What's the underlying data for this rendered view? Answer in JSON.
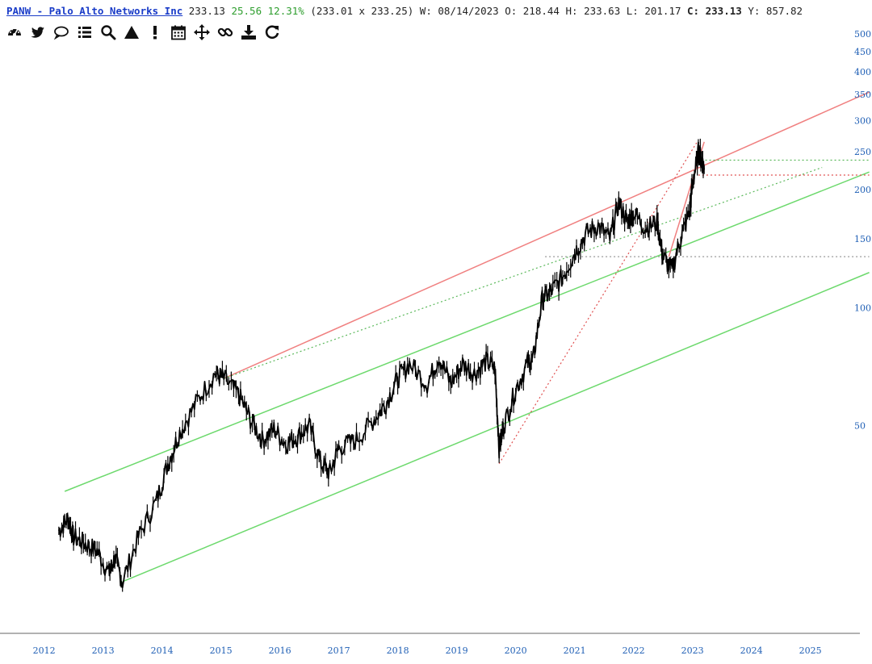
{
  "header": {
    "symbol_link": "PANW - Palo Alto Networks Inc",
    "last": "233.13",
    "change": "25.56",
    "change_pct": "12.31%",
    "bid_ask": "(233.01 x 233.25)",
    "week_label": "W:",
    "date": "08/14/2023",
    "open_label": "O:",
    "open": "218.44",
    "high_label": "H:",
    "high": "233.63",
    "low_label": "L:",
    "low": "201.17",
    "close_label": "C:",
    "close": "233.13",
    "year_label": "Y:",
    "year_val": "857.82"
  },
  "toolbar": {
    "icons": [
      "dashboard-icon",
      "twitter-icon",
      "comment-icon",
      "list-icon",
      "search-icon",
      "triangle-icon",
      "exclamation-icon",
      "calendar-icon",
      "move-icon",
      "link-icon",
      "download-icon",
      "refresh-icon"
    ]
  },
  "colors": {
    "price": "#000000",
    "resistance": "#f08080",
    "support": "#6dd96d",
    "dotted_green": "#5ab85a",
    "dotted_red": "#e05050",
    "dotted_gray": "#999999",
    "axis_text": "#1f5fb5"
  },
  "chart_data": {
    "type": "line",
    "scale": "log",
    "series": [
      {
        "x": [
          2012.25,
          2012.4,
          2012.5,
          2012.7,
          2012.9,
          2013.1,
          2013.2,
          2013.33,
          2013.6,
          2013.9,
          2014.1,
          2014.3,
          2014.6,
          2014.9,
          2015.05,
          2015.3,
          2015.5,
          2015.7,
          2015.9,
          2016.1,
          2016.3,
          2016.5,
          2016.7,
          2016.85,
          2017.0,
          2017.3,
          2017.6,
          2017.8,
          2018.0,
          2018.2,
          2018.5,
          2018.7,
          2018.9,
          2019.1,
          2019.3,
          2019.5,
          2019.65,
          2019.72,
          2019.8,
          2020.0,
          2020.2,
          2020.3,
          2020.45,
          2020.6,
          2020.8,
          2021.0,
          2021.2,
          2021.4,
          2021.6,
          2021.75,
          2021.9,
          2022.0,
          2022.2,
          2022.4,
          2022.5,
          2022.65,
          2022.8,
          2022.95,
          2023.0,
          2023.1,
          2023.15,
          2023.2
        ],
        "y": [
          27,
          29,
          26,
          25,
          24,
          21,
          23,
          20,
          26,
          32,
          40,
          48,
          58,
          68,
          66,
          60,
          52,
          46,
          49,
          45,
          47,
          50,
          40,
          38,
          44,
          46,
          52,
          57,
          66,
          72,
          64,
          75,
          64,
          72,
          68,
          73,
          70,
          44,
          50,
          62,
          72,
          74,
          105,
          110,
          120,
          138,
          155,
          162,
          150,
          185,
          165,
          175,
          160,
          165,
          135,
          125,
          150,
          175,
          205,
          250,
          240,
          225
        ]
      }
    ],
    "y_ticks": [
      500,
      450,
      400,
      350,
      300,
      250,
      200,
      150,
      100,
      50
    ],
    "x_ticks": [
      "2012",
      "2013",
      "2014",
      "2015",
      "2016",
      "2017",
      "2018",
      "2019",
      "2020",
      "2021",
      "2022",
      "2023",
      "2024",
      "2025"
    ],
    "xlim": [
      2011.8,
      2025.8
    ],
    "ylim": [
      16,
      560
    ],
    "trendlines": [
      {
        "style": "resistance",
        "x": [
          2015.05,
          2026
        ],
        "y": [
          66,
          355
        ]
      },
      {
        "style": "support",
        "x": [
          2012.35,
          2026
        ],
        "y": [
          34,
          222
        ]
      },
      {
        "style": "support",
        "x": [
          2013.33,
          2026
        ],
        "y": [
          20,
          123
        ]
      },
      {
        "style": "dotted_green",
        "x": [
          2015.05,
          2025.2
        ],
        "y": [
          66,
          228
        ]
      },
      {
        "style": "dotted_green",
        "x": [
          2023.15,
          2026
        ],
        "y": [
          238,
          238
        ]
      },
      {
        "style": "dotted_red",
        "x": [
          2023.1,
          2026
        ],
        "y": [
          218,
          218
        ]
      },
      {
        "style": "dotted_gray",
        "x": [
          2020.5,
          2026
        ],
        "y": [
          135,
          135
        ]
      },
      {
        "style": "dotted_red",
        "x": [
          2019.72,
          2023.08
        ],
        "y": [
          40,
          265
        ]
      },
      {
        "style": "resistance",
        "x": [
          2022.6,
          2023.2
        ],
        "y": [
          135,
          265
        ]
      }
    ]
  }
}
